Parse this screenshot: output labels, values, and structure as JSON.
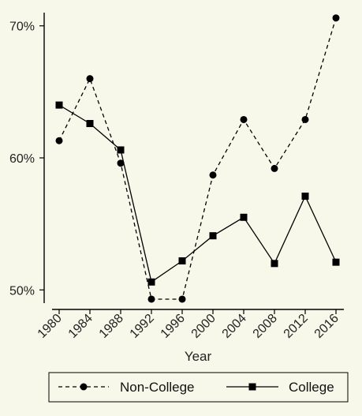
{
  "chart_data": {
    "type": "line",
    "title": "",
    "xlabel": "Year",
    "ylabel": "",
    "x": [
      1980,
      1984,
      1988,
      1992,
      1996,
      2000,
      2004,
      2008,
      2012,
      2016
    ],
    "x_tick_labels": [
      "1980",
      "1984",
      "1988",
      "1992",
      "1996",
      "2000",
      "2004",
      "2008",
      "2012",
      "2016"
    ],
    "y_ticks": [
      50,
      60,
      70
    ],
    "y_tick_labels": [
      "50%",
      "60%",
      "70%"
    ],
    "ylim": [
      49,
      71
    ],
    "grid": false,
    "legend_position": "bottom",
    "series": [
      {
        "name": "Non-College",
        "marker": "circle",
        "line_style": "dashed",
        "color": "#000000",
        "values": [
          61.3,
          66.0,
          59.6,
          49.3,
          49.3,
          58.7,
          62.9,
          59.2,
          62.9,
          70.6
        ]
      },
      {
        "name": "College",
        "marker": "square",
        "line_style": "solid",
        "color": "#000000",
        "values": [
          64.0,
          62.6,
          60.6,
          50.6,
          52.2,
          54.1,
          55.5,
          52.0,
          57.1,
          52.1
        ]
      }
    ]
  }
}
